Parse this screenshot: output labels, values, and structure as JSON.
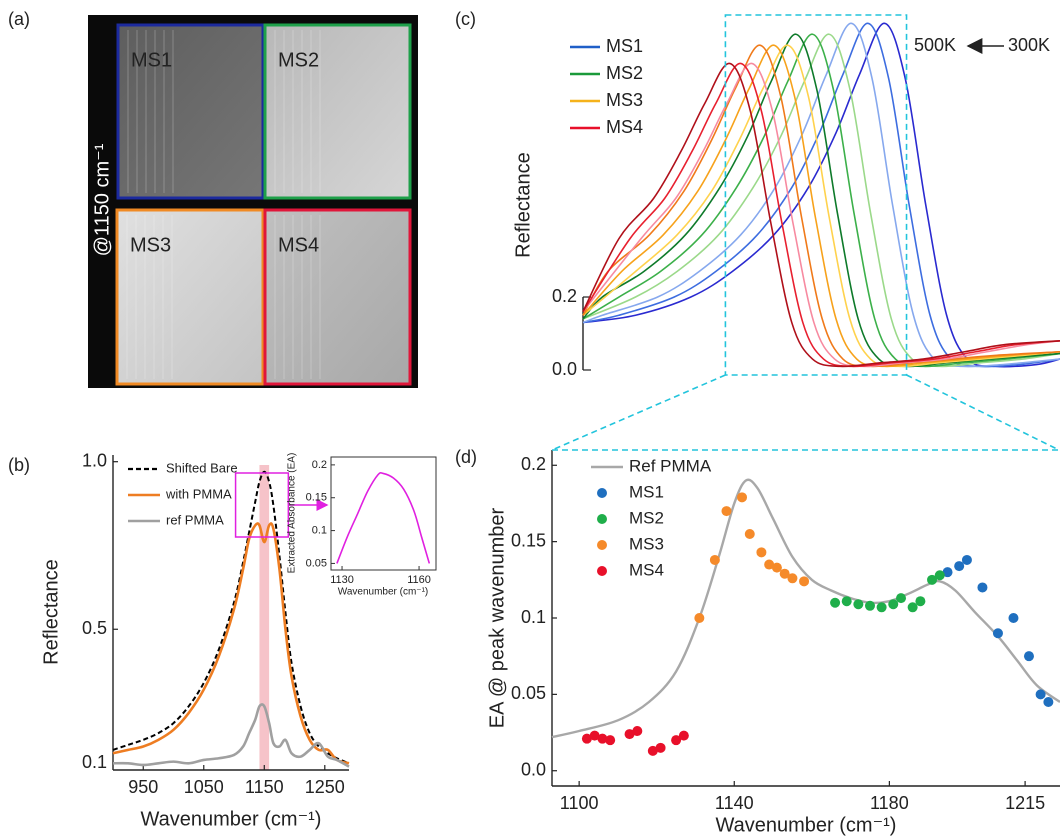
{
  "chart_data": [
    {
      "type": "image",
      "label": "(a)",
      "side_label": "@1150 cm⁻¹",
      "tiles": [
        {
          "name": "MS1",
          "color": "#1c2a9e"
        },
        {
          "name": "MS2",
          "color": "#1ea04a"
        },
        {
          "name": "MS3",
          "color": "#f08a24"
        },
        {
          "name": "MS4",
          "color": "#e0163a"
        }
      ]
    },
    {
      "type": "line",
      "label": "(b)",
      "xlabel": "Wavenumber (cm⁻¹)",
      "ylabel": "Reflectance",
      "x": [
        900,
        925,
        950,
        975,
        1000,
        1025,
        1050,
        1075,
        1100,
        1115,
        1125,
        1135,
        1142,
        1150,
        1158,
        1165,
        1175,
        1185,
        1195,
        1210,
        1225,
        1240,
        1255,
        1270,
        1290
      ],
      "xlim": [
        900,
        1290
      ],
      "xticks": [
        950,
        1050,
        1150,
        1250
      ],
      "ylim": [
        0.08,
        1.02
      ],
      "yticks": [
        0.1,
        0.5,
        {
          "value": 1,
          "label": "1.0"
        }
      ],
      "band": [
        1142,
        1158
      ],
      "band_color": "#f6c3c9",
      "legend": "upper left",
      "series": [
        {
          "name": "Shifted Bare",
          "color": "#000000",
          "dash": true,
          "values": [
            0.14,
            0.155,
            0.17,
            0.19,
            0.22,
            0.27,
            0.34,
            0.44,
            0.58,
            0.7,
            0.79,
            0.88,
            0.94,
            0.97,
            0.94,
            0.87,
            0.72,
            0.55,
            0.4,
            0.27,
            0.19,
            0.15,
            0.13,
            0.115,
            0.1
          ]
        },
        {
          "name": "with PMMA",
          "color": "#ee7d22",
          "dash": false,
          "values": [
            0.13,
            0.14,
            0.15,
            0.17,
            0.2,
            0.25,
            0.32,
            0.42,
            0.56,
            0.68,
            0.77,
            0.81,
            0.81,
            0.76,
            0.81,
            0.8,
            0.68,
            0.5,
            0.36,
            0.24,
            0.17,
            0.14,
            0.14,
            0.11,
            0.1
          ]
        },
        {
          "name": "ref PMMA",
          "color": "#a0a0a0",
          "dash": false,
          "values": [
            0.1,
            0.1,
            0.095,
            0.1,
            0.105,
            0.1,
            0.11,
            0.115,
            0.125,
            0.15,
            0.19,
            0.23,
            0.27,
            0.27,
            0.22,
            0.16,
            0.15,
            0.17,
            0.13,
            0.12,
            0.14,
            0.16,
            0.12,
            0.11,
            0.09
          ]
        }
      ],
      "inset": {
        "type": "line",
        "xlabel": "Wavenumber (cm⁻¹)",
        "ylabel": "Extracted Absorbance (EA)",
        "x": [
          1128,
          1132,
          1136,
          1140,
          1144,
          1146,
          1150,
          1154,
          1158,
          1161,
          1164
        ],
        "values": [
          0.05,
          0.09,
          0.125,
          0.16,
          0.185,
          0.187,
          0.18,
          0.163,
          0.13,
          0.09,
          0.05
        ],
        "color": "#e020e0",
        "xlim": [
          1125.7,
          1166.6
        ],
        "xticks": [
          1130,
          1160
        ],
        "ylim": [
          0.04,
          0.212
        ],
        "yticks": [
          0.05,
          0.1,
          0.15,
          0.2
        ]
      }
    },
    {
      "type": "line",
      "label": "(c)",
      "ylabel": "Reflectance",
      "xlim": [
        990,
        1335
      ],
      "ylim": [
        0,
        0.97
      ],
      "yticks": [
        {
          "value": 0,
          "label": "0.0"
        },
        0.2
      ],
      "legend": "upper left",
      "annotation": {
        "from": "300K",
        "to": "500K"
      },
      "series": [
        {
          "name": "MS1",
          "color": "#1f5fc8",
          "curves": [
            {
              "color": "#2a2ad0",
              "x": [
                990,
                1028,
                1068,
                1098,
                1128,
                1153,
                1173,
                1190,
                1208,
                1223,
                1238,
                1253,
                1268,
                1288,
                1318,
                1335
              ],
              "values": [
                0.13,
                0.15,
                0.2,
                0.27,
                0.37,
                0.5,
                0.65,
                0.81,
                0.95,
                0.8,
                0.45,
                0.15,
                0.03,
                0.01,
                0.015,
                0.03
              ]
            },
            {
              "color": "#3d6de0",
              "x": [
                990,
                1016,
                1056,
                1086,
                1116,
                1141,
                1161,
                1178,
                1196,
                1211,
                1226,
                1241,
                1256,
                1276,
                1306,
                1335
              ],
              "values": [
                0.13,
                0.15,
                0.2,
                0.27,
                0.37,
                0.5,
                0.65,
                0.81,
                0.95,
                0.8,
                0.45,
                0.15,
                0.03,
                0.01,
                0.015,
                0.03
              ]
            },
            {
              "color": "#86a8ee",
              "x": [
                990,
                1004,
                1044,
                1074,
                1104,
                1129,
                1149,
                1166,
                1184,
                1199,
                1214,
                1229,
                1244,
                1264,
                1294,
                1335
              ],
              "values": [
                0.13,
                0.15,
                0.2,
                0.27,
                0.37,
                0.5,
                0.65,
                0.81,
                0.95,
                0.8,
                0.45,
                0.15,
                0.03,
                0.01,
                0.015,
                0.03
              ]
            }
          ]
        },
        {
          "name": "MS2",
          "color": "#1a9a3a",
          "curves": [
            {
              "color": "#9bd98a",
              "x": [
                990,
                1028,
                1058,
                1088,
                1113,
                1133,
                1150,
                1168,
                1183,
                1198,
                1213,
                1228,
                1248,
                1278,
                1308,
                1335
              ],
              "values": [
                0.14,
                0.2,
                0.27,
                0.37,
                0.5,
                0.64,
                0.79,
                0.92,
                0.77,
                0.43,
                0.14,
                0.03,
                0.01,
                0.02,
                0.03,
                0.045
              ]
            },
            {
              "color": "#3cb04a",
              "x": [
                990,
                1016,
                1046,
                1076,
                1101,
                1121,
                1138,
                1156,
                1171,
                1186,
                1201,
                1216,
                1236,
                1266,
                1296,
                1335
              ],
              "values": [
                0.14,
                0.2,
                0.27,
                0.37,
                0.5,
                0.64,
                0.79,
                0.92,
                0.77,
                0.43,
                0.14,
                0.03,
                0.01,
                0.02,
                0.03,
                0.045
              ]
            },
            {
              "color": "#0e7a2a",
              "x": [
                990,
                1004,
                1034,
                1064,
                1089,
                1109,
                1126,
                1144,
                1159,
                1174,
                1189,
                1204,
                1224,
                1254,
                1284,
                1335
              ],
              "values": [
                0.14,
                0.2,
                0.27,
                0.37,
                0.5,
                0.64,
                0.79,
                0.92,
                0.77,
                0.43,
                0.14,
                0.03,
                0.01,
                0.02,
                0.03,
                0.045
              ]
            }
          ]
        },
        {
          "name": "MS3",
          "color": "#f5b21b",
          "curves": [
            {
              "color": "#ffd24d",
              "x": [
                990,
                1028,
                1058,
                1083,
                1103,
                1120,
                1138,
                1153,
                1168,
                1183,
                1198,
                1218,
                1248,
                1278,
                1308,
                1335
              ],
              "values": [
                0.15,
                0.27,
                0.37,
                0.49,
                0.63,
                0.77,
                0.89,
                0.75,
                0.42,
                0.14,
                0.03,
                0.01,
                0.02,
                0.03,
                0.04,
                0.05
              ]
            },
            {
              "color": "#f7a21b",
              "x": [
                990,
                1018,
                1048,
                1073,
                1093,
                1110,
                1128,
                1143,
                1158,
                1173,
                1188,
                1208,
                1238,
                1268,
                1298,
                1335
              ],
              "values": [
                0.15,
                0.27,
                0.37,
                0.49,
                0.63,
                0.77,
                0.89,
                0.75,
                0.42,
                0.14,
                0.03,
                0.01,
                0.02,
                0.03,
                0.04,
                0.05
              ]
            },
            {
              "color": "#f07a1a",
              "x": [
                990,
                1008,
                1038,
                1063,
                1083,
                1100,
                1118,
                1133,
                1148,
                1163,
                1178,
                1198,
                1228,
                1258,
                1288,
                1335
              ],
              "values": [
                0.15,
                0.27,
                0.37,
                0.49,
                0.63,
                0.77,
                0.89,
                0.75,
                0.42,
                0.14,
                0.03,
                0.01,
                0.02,
                0.03,
                0.04,
                0.05
              ]
            }
          ]
        },
        {
          "name": "MS4",
          "color": "#e8102a",
          "curves": [
            {
              "color": "#f78aa0",
              "x": [
                990,
                1032,
                1057,
                1077,
                1094,
                1112,
                1127,
                1142,
                1157,
                1172,
                1192,
                1222,
                1252,
                1282,
                1312,
                1335
              ],
              "values": [
                0.16,
                0.36,
                0.47,
                0.6,
                0.73,
                0.84,
                0.71,
                0.4,
                0.13,
                0.03,
                0.01,
                0.02,
                0.03,
                0.05,
                0.07,
                0.08
              ]
            },
            {
              "color": "#e8202f",
              "x": [
                990,
                1024,
                1049,
                1069,
                1086,
                1104,
                1119,
                1134,
                1149,
                1164,
                1184,
                1214,
                1244,
                1274,
                1304,
                1335
              ],
              "values": [
                0.16,
                0.36,
                0.47,
                0.6,
                0.73,
                0.84,
                0.71,
                0.4,
                0.13,
                0.03,
                0.01,
                0.02,
                0.03,
                0.05,
                0.07,
                0.08
              ]
            },
            {
              "color": "#b0101a",
              "x": [
                990,
                1016,
                1041,
                1061,
                1078,
                1096,
                1111,
                1126,
                1141,
                1156,
                1176,
                1206,
                1236,
                1266,
                1296,
                1335
              ],
              "values": [
                0.16,
                0.36,
                0.47,
                0.6,
                0.73,
                0.84,
                0.71,
                0.4,
                0.13,
                0.03,
                0.01,
                0.02,
                0.03,
                0.05,
                0.07,
                0.08
              ]
            }
          ]
        }
      ]
    },
    {
      "type": "scatter",
      "label": "(d)",
      "xlabel": "Wavenumber (cm⁻¹)",
      "ylabel": "EA @ peak wavenumber",
      "xlim": [
        1093,
        1224
      ],
      "xticks": [
        1100,
        1140,
        1180,
        1215
      ],
      "ylim": [
        -0.01,
        0.21
      ],
      "yticks": [
        {
          "value": 0,
          "label": "0.0"
        },
        0.05,
        0.1,
        0.15,
        0.2
      ],
      "legend": "upper left",
      "line": {
        "name": "Ref PMMA",
        "color": "#a8a8a8",
        "x": [
          1093,
          1100,
          1110,
          1118,
          1125,
          1131,
          1136,
          1140,
          1143,
          1146,
          1150,
          1155,
          1160,
          1165,
          1170,
          1175,
          1180,
          1185,
          1190,
          1193,
          1197,
          1202,
          1208,
          1213,
          1218,
          1224
        ],
        "values": [
          0.022,
          0.026,
          0.033,
          0.045,
          0.065,
          0.1,
          0.14,
          0.175,
          0.19,
          0.185,
          0.165,
          0.14,
          0.125,
          0.118,
          0.113,
          0.11,
          0.111,
          0.116,
          0.122,
          0.124,
          0.118,
          0.104,
          0.088,
          0.072,
          0.056,
          0.045
        ]
      },
      "series": [
        {
          "name": "MS1",
          "color": "#1f6fbf",
          "x": [
            1195,
            1198,
            1200,
            1204,
            1208,
            1212,
            1216,
            1219,
            1221
          ],
          "values": [
            0.13,
            0.134,
            0.138,
            0.12,
            0.09,
            0.1,
            0.075,
            0.05,
            0.045
          ]
        },
        {
          "name": "MS2",
          "color": "#1fae4a",
          "x": [
            1166,
            1169,
            1172,
            1175,
            1178,
            1181,
            1183,
            1186,
            1188,
            1191,
            1193
          ],
          "values": [
            0.11,
            0.111,
            0.109,
            0.108,
            0.107,
            0.109,
            0.113,
            0.107,
            0.111,
            0.125,
            0.128
          ]
        },
        {
          "name": "MS3",
          "color": "#f58a2a",
          "x": [
            1131,
            1135,
            1138,
            1142,
            1144,
            1147,
            1149,
            1151,
            1153,
            1155,
            1158
          ],
          "values": [
            0.1,
            0.138,
            0.17,
            0.179,
            0.155,
            0.143,
            0.135,
            0.133,
            0.129,
            0.126,
            0.124
          ]
        },
        {
          "name": "MS4",
          "color": "#e8102a",
          "x": [
            1102,
            1104,
            1106,
            1108,
            1113,
            1115,
            1119,
            1121,
            1125,
            1127
          ],
          "values": [
            0.021,
            0.023,
            0.021,
            0.02,
            0.024,
            0.026,
            0.013,
            0.015,
            0.02,
            0.023
          ]
        }
      ]
    }
  ]
}
